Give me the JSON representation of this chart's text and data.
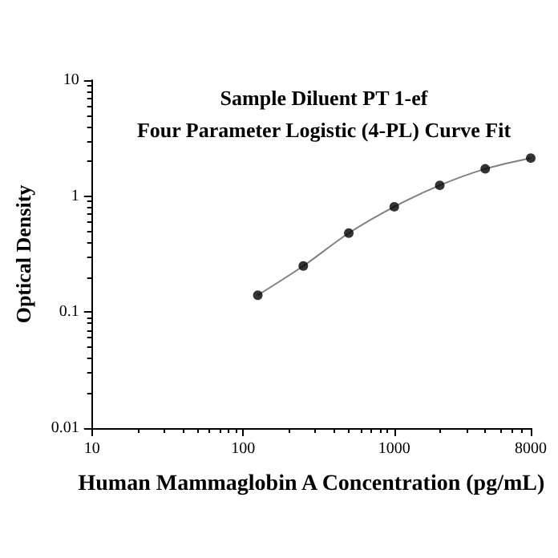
{
  "chart_data": {
    "type": "scatter",
    "title": "Sample Diluent PT 1-ef\nFour Parameter Logistic (4-PL) Curve Fit",
    "xlabel": "Human Mammaglobin A Concentration (pg/mL)",
    "ylabel": "Optical Density",
    "x": [
      125,
      250,
      500,
      1000,
      2000,
      4000,
      8000
    ],
    "series": [
      {
        "color": "#000000",
        "marker": "circle",
        "values": [
          0.14,
          0.25,
          0.48,
          0.81,
          1.24,
          1.72,
          2.13
        ]
      },
      {
        "type": "line",
        "color": "#808080",
        "marker": "none",
        "line_style": "solid",
        "values": [
          0.14,
          0.25,
          0.48,
          0.81,
          1.24,
          1.72,
          2.13
        ]
      }
    ],
    "log": "xy",
    "xlim": [
      10,
      8000
    ],
    "xticks": [
      10,
      100,
      1000,
      8000
    ],
    "ylim": [
      0.01,
      10
    ],
    "yticks": [
      0.01,
      0.1,
      1,
      10
    ],
    "grid": false
  }
}
